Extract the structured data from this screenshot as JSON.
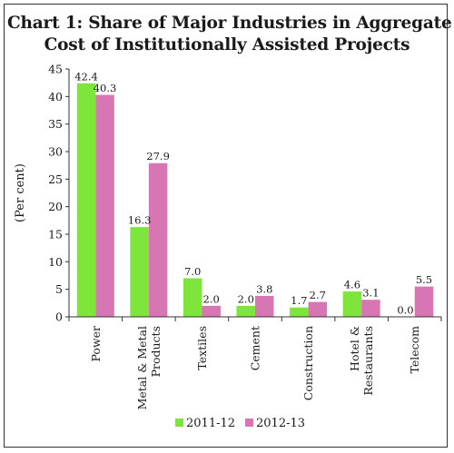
{
  "chart_data": {
    "type": "bar",
    "title_lines": [
      "Chart 1: Share of Major Industries in Aggregate",
      "Cost of Institutionally Assisted Projects"
    ],
    "ylabel": "(Per cent)",
    "xlabel": "",
    "ylim": [
      0,
      45
    ],
    "yticks": [
      0,
      5,
      10,
      15,
      20,
      25,
      30,
      35,
      40,
      45
    ],
    "categories": [
      [
        "Power"
      ],
      [
        "Metal & Metal",
        "Products"
      ],
      [
        "Textiles"
      ],
      [
        "Cement"
      ],
      [
        "Construction"
      ],
      [
        "Hotel &",
        "Restaurants"
      ],
      [
        "Telecom"
      ]
    ],
    "series": [
      {
        "name": "2011-12",
        "color": "#7ee53a",
        "values": [
          42.4,
          16.3,
          7.0,
          2.0,
          1.7,
          4.6,
          0.0
        ],
        "labels": [
          "42.4",
          "16.3",
          "7.0",
          "2.0",
          "1.7",
          "4.6",
          "0.0"
        ]
      },
      {
        "name": "2012-13",
        "color": "#d876b4",
        "values": [
          40.3,
          27.9,
          2.0,
          3.8,
          2.7,
          3.1,
          5.5
        ],
        "labels": [
          "40.3",
          "27.9",
          "2.0",
          "3.8",
          "2.7",
          "3.1",
          "5.5"
        ]
      }
    ],
    "legend_position": "bottom",
    "grid": false
  }
}
